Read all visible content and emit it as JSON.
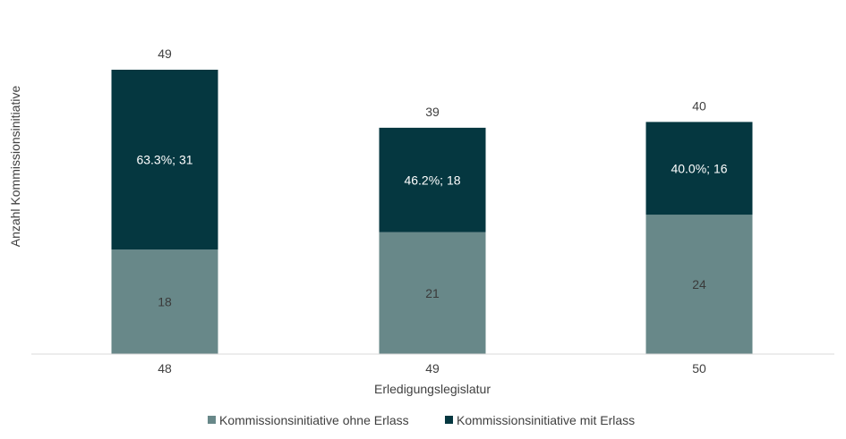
{
  "chart_data": {
    "type": "bar",
    "stacked": true,
    "categories": [
      "48",
      "49",
      "50"
    ],
    "series": [
      {
        "name": "Kommissionsinitiative ohne Erlass",
        "values": [
          18,
          21,
          24
        ],
        "labels": [
          "18",
          "21",
          "24"
        ],
        "color": "#688889"
      },
      {
        "name": "Kommissionsinitiative mit Erlass",
        "values": [
          31,
          18,
          16
        ],
        "labels": [
          "63.3%; 31",
          "46.2%; 18",
          "40.0%; 16"
        ],
        "color": "#053740"
      }
    ],
    "totals": [
      "49",
      "39",
      "40"
    ],
    "xlabel": "Erledigungslegislatur",
    "ylabel": "Anzahl Kommissionsinitiative",
    "ylim": [
      0,
      55
    ],
    "grid": false,
    "legend_position": "bottom"
  }
}
